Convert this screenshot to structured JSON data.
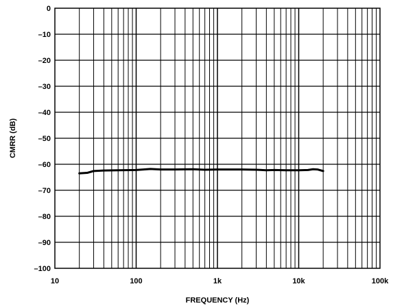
{
  "chart_data": {
    "type": "line",
    "xlabel": "FREQUENCY (Hz)",
    "ylabel": "CMRR (dB)",
    "x_scale": "log",
    "xlim": [
      10,
      100000
    ],
    "ylim": [
      -100,
      0
    ],
    "grid": true,
    "x_ticks": [
      {
        "value": 10,
        "label": "10"
      },
      {
        "value": 100,
        "label": "100"
      },
      {
        "value": 1000,
        "label": "1k"
      },
      {
        "value": 10000,
        "label": "10k"
      },
      {
        "value": 100000,
        "label": "100k"
      }
    ],
    "y_ticks": [
      {
        "value": 0,
        "label": "0"
      },
      {
        "value": -10,
        "label": "–10"
      },
      {
        "value": -20,
        "label": "–20"
      },
      {
        "value": -30,
        "label": "–30"
      },
      {
        "value": -40,
        "label": "–40"
      },
      {
        "value": -50,
        "label": "–50"
      },
      {
        "value": -60,
        "label": "–60"
      },
      {
        "value": -70,
        "label": "–70"
      },
      {
        "value": -80,
        "label": "–80"
      },
      {
        "value": -90,
        "label": "–90"
      },
      {
        "value": -100,
        "label": "–100"
      }
    ],
    "series": [
      {
        "x": [
          20,
          25,
          30,
          40,
          60,
          100,
          150,
          200,
          300,
          500,
          700,
          1000,
          1500,
          2000,
          3000,
          4000,
          5000,
          7000,
          10000,
          13000,
          15000,
          17000,
          20000
        ],
        "y": [
          -63.5,
          -63.3,
          -62.6,
          -62.4,
          -62.3,
          -62.2,
          -61.8,
          -62.0,
          -62.0,
          -61.9,
          -62.1,
          -62.0,
          -62.0,
          -62.0,
          -62.1,
          -62.3,
          -62.2,
          -62.3,
          -62.3,
          -62.2,
          -61.9,
          -62.0,
          -62.6
        ]
      }
    ]
  }
}
